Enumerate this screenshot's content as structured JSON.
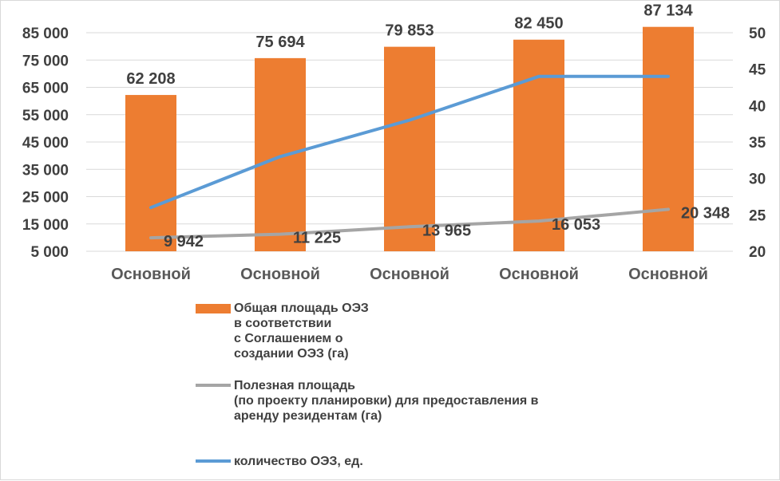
{
  "chart_data": {
    "type": "bar",
    "categories": [
      "Основной",
      "Основной",
      "Основной",
      "Основной",
      "Основной"
    ],
    "series": [
      {
        "name": "Общая площадь ОЭЗ в соответствии с Соглашением о создании ОЭЗ (га)",
        "legend_lines": [
          "Общая площадь ОЭЗ",
          "в соответствии",
          "с Соглашением о",
          "создании ОЭЗ (га)"
        ],
        "chart_type": "bar",
        "axis": "left",
        "color": "#ED7D31",
        "values": [
          62208,
          75694,
          79853,
          82450,
          87134
        ],
        "labels": [
          "62 208",
          "75 694",
          "79 853",
          "82 450",
          "87 134"
        ]
      },
      {
        "name": "Полезная площадь (по проекту планировки) для предоставления в аренду резидентам (га)",
        "legend_lines": [
          "Полезная площадь",
          "(по проекту планировки) для предоставления в",
          "аренду резидентам (га)"
        ],
        "chart_type": "line",
        "axis": "left",
        "color": "#A5A5A5",
        "values": [
          9942,
          11225,
          13965,
          16053,
          20348
        ],
        "labels": [
          "9 942",
          "11 225",
          "13 965",
          "16 053",
          "20 348"
        ]
      },
      {
        "name": "количество ОЭЗ, ед.",
        "legend_lines": [
          "количество ОЭЗ, ед."
        ],
        "chart_type": "line",
        "axis": "right",
        "color": "#5B9BD5",
        "values": [
          26,
          33,
          38,
          44,
          44
        ]
      }
    ],
    "y_left": {
      "min": 5000,
      "max": 85000,
      "ticks": [
        5000,
        15000,
        25000,
        35000,
        45000,
        55000,
        65000,
        75000,
        85000
      ],
      "tick_labels": [
        "5 000",
        "15 000",
        "25 000",
        "35 000",
        "45 000",
        "55 000",
        "65 000",
        "75 000",
        "85 000"
      ]
    },
    "y_right": {
      "min": 20,
      "max": 50,
      "ticks": [
        20,
        25,
        30,
        35,
        40,
        45,
        50
      ],
      "tick_labels": [
        "20",
        "25",
        "30",
        "35",
        "40",
        "45",
        "50"
      ]
    },
    "grid": true,
    "legend_position": "bottom"
  }
}
